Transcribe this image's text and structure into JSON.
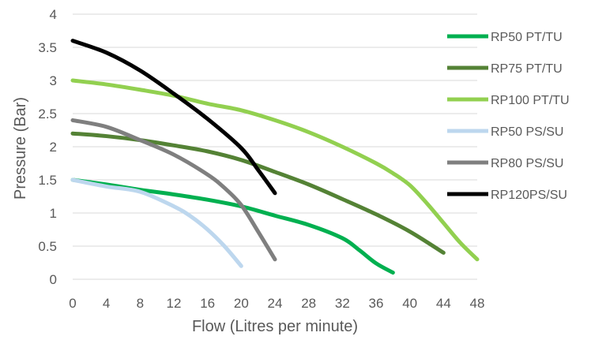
{
  "chart_data": {
    "type": "line",
    "title": "",
    "xlabel": "Flow (Litres per minute)",
    "ylabel": "Pressure (Bar)",
    "xlim": [
      0,
      48
    ],
    "ylim": [
      0,
      4
    ],
    "x_ticks": [
      0,
      4,
      8,
      12,
      16,
      20,
      24,
      28,
      32,
      36,
      40,
      44,
      48
    ],
    "y_ticks": [
      0,
      0.5,
      1,
      1.5,
      2,
      2.5,
      3,
      3.5,
      4
    ],
    "x_tick_labels": [
      "0",
      "4",
      "8",
      "12",
      "16",
      "20",
      "24",
      "28",
      "32",
      "36",
      "40",
      "44",
      "48"
    ],
    "y_tick_labels": [
      "0",
      "0.5",
      "1",
      "1.5",
      "2",
      "2.5",
      "3",
      "3.5",
      "4"
    ],
    "grid": "horizontal",
    "legend_position": "right",
    "series": [
      {
        "name": "RP50 PT/TU",
        "color": "#00b050",
        "points": [
          [
            0,
            1.5
          ],
          [
            4,
            1.43
          ],
          [
            8,
            1.35
          ],
          [
            12,
            1.28
          ],
          [
            16,
            1.2
          ],
          [
            20,
            1.1
          ],
          [
            24,
            0.96
          ],
          [
            28,
            0.82
          ],
          [
            32,
            0.62
          ],
          [
            34,
            0.44
          ],
          [
            36,
            0.24
          ],
          [
            38,
            0.1
          ]
        ]
      },
      {
        "name": "RP75 PT/TU",
        "color": "#548235",
        "points": [
          [
            0,
            2.2
          ],
          [
            4,
            2.16
          ],
          [
            8,
            2.1
          ],
          [
            12,
            2.02
          ],
          [
            16,
            1.93
          ],
          [
            20,
            1.8
          ],
          [
            24,
            1.62
          ],
          [
            28,
            1.43
          ],
          [
            32,
            1.21
          ],
          [
            36,
            0.98
          ],
          [
            40,
            0.72
          ],
          [
            44,
            0.4
          ]
        ]
      },
      {
        "name": "RP100 PT/TU",
        "color": "#92d050",
        "points": [
          [
            0,
            3.0
          ],
          [
            4,
            2.94
          ],
          [
            8,
            2.86
          ],
          [
            12,
            2.77
          ],
          [
            16,
            2.65
          ],
          [
            20,
            2.55
          ],
          [
            24,
            2.4
          ],
          [
            28,
            2.22
          ],
          [
            32,
            2.0
          ],
          [
            36,
            1.75
          ],
          [
            38,
            1.6
          ],
          [
            40,
            1.42
          ],
          [
            42,
            1.15
          ],
          [
            44,
            0.85
          ],
          [
            46,
            0.55
          ],
          [
            48,
            0.3
          ]
        ]
      },
      {
        "name": "RP50 PS/SU",
        "color": "#bdd7ee",
        "points": [
          [
            0,
            1.5
          ],
          [
            4,
            1.4
          ],
          [
            8,
            1.32
          ],
          [
            12,
            1.1
          ],
          [
            14,
            0.95
          ],
          [
            16,
            0.75
          ],
          [
            18,
            0.5
          ],
          [
            20,
            0.2
          ]
        ]
      },
      {
        "name": "RP80 PS/SU",
        "color": "#7f7f7f",
        "points": [
          [
            0,
            2.4
          ],
          [
            4,
            2.3
          ],
          [
            8,
            2.1
          ],
          [
            12,
            1.88
          ],
          [
            16,
            1.58
          ],
          [
            18,
            1.38
          ],
          [
            20,
            1.12
          ],
          [
            22,
            0.72
          ],
          [
            24,
            0.3
          ]
        ]
      },
      {
        "name": "RP120PS/SU",
        "color": "#000000",
        "points": [
          [
            0,
            3.6
          ],
          [
            4,
            3.42
          ],
          [
            8,
            3.15
          ],
          [
            12,
            2.8
          ],
          [
            16,
            2.42
          ],
          [
            20,
            1.98
          ],
          [
            22,
            1.65
          ],
          [
            24,
            1.3
          ]
        ]
      }
    ]
  }
}
